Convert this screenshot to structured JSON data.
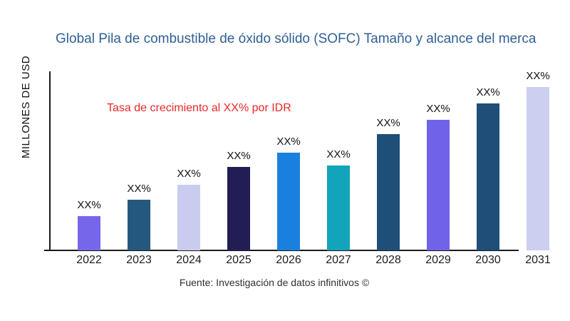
{
  "title": {
    "text": "Global Pila de combustible de óxido sólido (SOFC) Tamaño y alcance del merca",
    "color": "#2e6095"
  },
  "y_axis_label": "MILLONES DE USD",
  "annotation": {
    "text": "Tasa de crecimiento al XX% por IDR",
    "color": "#e8282b"
  },
  "footer": "Fuente: Investigación de datos infinitivos ©",
  "chart_data": {
    "type": "bar",
    "title": "Global Pila de combustible de óxido sólido (SOFC) Tamaño y alcance del merca",
    "xlabel": "",
    "ylabel": "MILLONES DE USD",
    "categories": [
      "2022",
      "2023",
      "2024",
      "2025",
      "2026",
      "2027",
      "2028",
      "2029",
      "2030",
      "2031"
    ],
    "values": [
      21,
      31,
      40,
      51,
      60,
      52,
      71,
      80,
      90,
      100
    ],
    "value_scale_note": "no numeric axis shown; values are relative estimates with 2031 = 100",
    "value_labels": [
      "XX%",
      "XX%",
      "XX%",
      "XX%",
      "XX%",
      "XX%",
      "XX%",
      "XX%",
      "XX%",
      "XX%"
    ],
    "bar_colors": [
      "#7667ea",
      "#25587e",
      "#caccef",
      "#231d56",
      "#1a80df",
      "#12a4ba",
      "#1f4e79",
      "#7062e9",
      "#1f4e79",
      "#cdcff0"
    ],
    "annotation": "Tasa de crecimiento al XX% por IDR",
    "source": "Fuente: Investigación de datos infinitivos ©",
    "ylim": [
      0,
      110
    ],
    "grid": false,
    "legend": false,
    "y_tick_labels_shown": false
  }
}
